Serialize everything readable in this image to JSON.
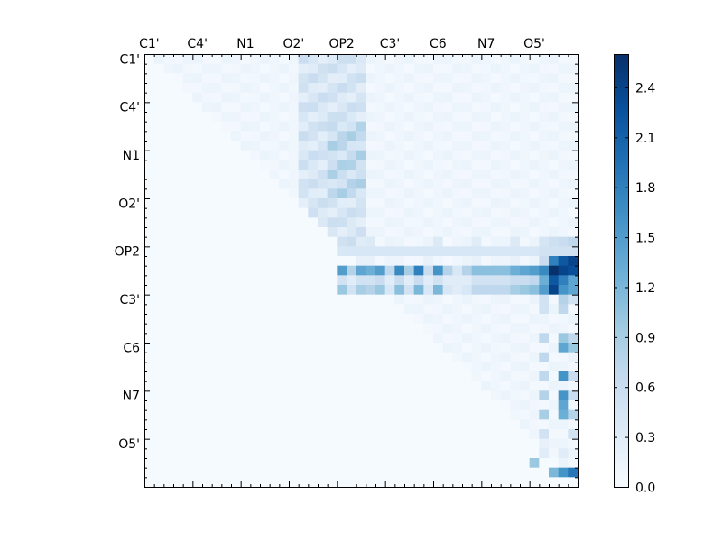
{
  "chart_data": {
    "type": "heatmap",
    "colormap": "Blues",
    "title": "",
    "xlabel": "",
    "ylabel": "",
    "n": 45,
    "labels": [
      "C1'",
      "C4'",
      "N1",
      "O2'",
      "OP2",
      "C3'",
      "C6",
      "N7",
      "O5'"
    ],
    "label_indices": [
      0,
      5,
      10,
      15,
      20,
      25,
      30,
      35,
      40
    ],
    "x_tick_position": "top",
    "vmin": 0.0,
    "vmax": 2.6,
    "colorbar_ticks": [
      0.0,
      0.3,
      0.6,
      0.9,
      1.2,
      1.5,
      1.8,
      2.1,
      2.4
    ],
    "colorbar_tick_labels": [
      "0.0",
      "0.3",
      "0.6",
      "0.9",
      "1.2",
      "1.5",
      "1.8",
      "2.1",
      "2.4"
    ],
    "background_value": 0.02,
    "upper_triangle_base": 0.12,
    "strong_rows": [
      {
        "row": 19,
        "values": {
          "22": 0.3,
          "23": 0.35,
          "30": 0.35,
          "34": 0.3,
          "38": 0.35,
          "41": 0.45,
          "42": 0.55,
          "43": 0.6,
          "44": 0.7
        }
      },
      {
        "row": 20,
        "values": {
          "20": 0.4,
          "21": 0.4,
          "22": 0.4,
          "23": 0.4,
          "24": 0.4,
          "25": 0.4,
          "26": 0.4,
          "27": 0.4,
          "28": 0.4,
          "29": 0.4,
          "30": 0.4,
          "31": 0.4,
          "32": 0.4,
          "33": 0.4,
          "34": 0.4,
          "35": 0.4,
          "36": 0.4,
          "37": 0.4,
          "38": 0.4,
          "39": 0.4,
          "40": 0.4,
          "41": 0.5,
          "42": 0.5,
          "43": 0.5,
          "44": 0.5
        }
      },
      {
        "row": 21,
        "values": {
          "22": 0.2,
          "23": 0.2,
          "29": 0.2,
          "34": 0.2,
          "38": 0.2,
          "41": 0.6,
          "42": 1.8,
          "43": 2.2,
          "44": 2.4
        }
      },
      {
        "row": 22,
        "values": {
          "20": 1.5,
          "21": 0.8,
          "22": 1.4,
          "23": 1.3,
          "24": 1.5,
          "25": 0.7,
          "26": 1.7,
          "27": 0.9,
          "28": 1.8,
          "29": 0.6,
          "30": 1.6,
          "31": 0.8,
          "32": 0.4,
          "33": 0.8,
          "34": 1.1,
          "35": 1.1,
          "36": 1.1,
          "37": 1.1,
          "38": 1.3,
          "39": 1.4,
          "40": 1.5,
          "41": 1.7,
          "42": 2.6,
          "43": 2.4,
          "44": 2.3
        }
      },
      {
        "row": 23,
        "values": {
          "20": 0.5,
          "21": 0.3,
          "22": 0.5,
          "23": 0.5,
          "24": 0.6,
          "25": 0.3,
          "26": 0.6,
          "27": 0.3,
          "28": 0.6,
          "29": 0.3,
          "30": 0.5,
          "31": 0.3,
          "32": 0.3,
          "33": 0.3,
          "34": 0.5,
          "35": 0.5,
          "36": 0.5,
          "37": 0.5,
          "38": 0.6,
          "39": 0.6,
          "40": 0.7,
          "41": 1.3,
          "42": 2.2,
          "43": 1.8,
          "44": 1.4
        }
      },
      {
        "row": 24,
        "values": {
          "20": 1.0,
          "21": 0.5,
          "22": 0.9,
          "23": 0.8,
          "24": 1.0,
          "25": 0.4,
          "26": 1.1,
          "27": 0.5,
          "28": 1.2,
          "29": 0.4,
          "30": 1.2,
          "31": 0.4,
          "32": 0.3,
          "33": 0.4,
          "34": 0.7,
          "35": 0.7,
          "36": 0.7,
          "37": 0.7,
          "38": 0.9,
          "39": 1.0,
          "40": 1.1,
          "41": 1.5,
          "42": 2.4,
          "43": 1.6,
          "44": 1.4
        }
      }
    ],
    "column_blocks": [
      {
        "col": 41,
        "rows": [
          25,
          26,
          29,
          31,
          33,
          35,
          37,
          39
        ],
        "values": [
          0.5,
          0.5,
          0.7,
          0.7,
          0.7,
          0.8,
          0.9,
          0.5
        ]
      },
      {
        "col": 43,
        "rows": [
          25,
          26,
          29,
          30,
          33,
          35,
          36,
          37
        ],
        "values": [
          0.8,
          0.7,
          1.0,
          1.4,
          1.6,
          1.6,
          1.4,
          1.3
        ]
      },
      {
        "col": 44,
        "rows": [
          25,
          29,
          30,
          33,
          35,
          37,
          39
        ],
        "values": [
          0.5,
          0.7,
          1.0,
          0.6,
          0.6,
          0.8,
          0.5
        ]
      }
    ],
    "tail_cells": [
      {
        "row": 40,
        "col": 41,
        "value": 0.2
      },
      {
        "row": 41,
        "col": 41,
        "value": 0.3
      },
      {
        "row": 41,
        "col": 43,
        "value": 0.3
      },
      {
        "row": 42,
        "col": 40,
        "value": 1.0
      },
      {
        "row": 43,
        "col": 42,
        "value": 1.2
      },
      {
        "row": 43,
        "col": 43,
        "value": 1.6
      },
      {
        "row": 43,
        "col": 44,
        "value": 1.9
      }
    ],
    "upper_region_a": {
      "rows": [
        0,
        19
      ],
      "cols": [
        16,
        22
      ],
      "value": 0.6
    },
    "upper_region_b": {
      "rows": [
        7,
        14
      ],
      "cols": [
        19,
        22
      ],
      "value": 0.9
    }
  }
}
